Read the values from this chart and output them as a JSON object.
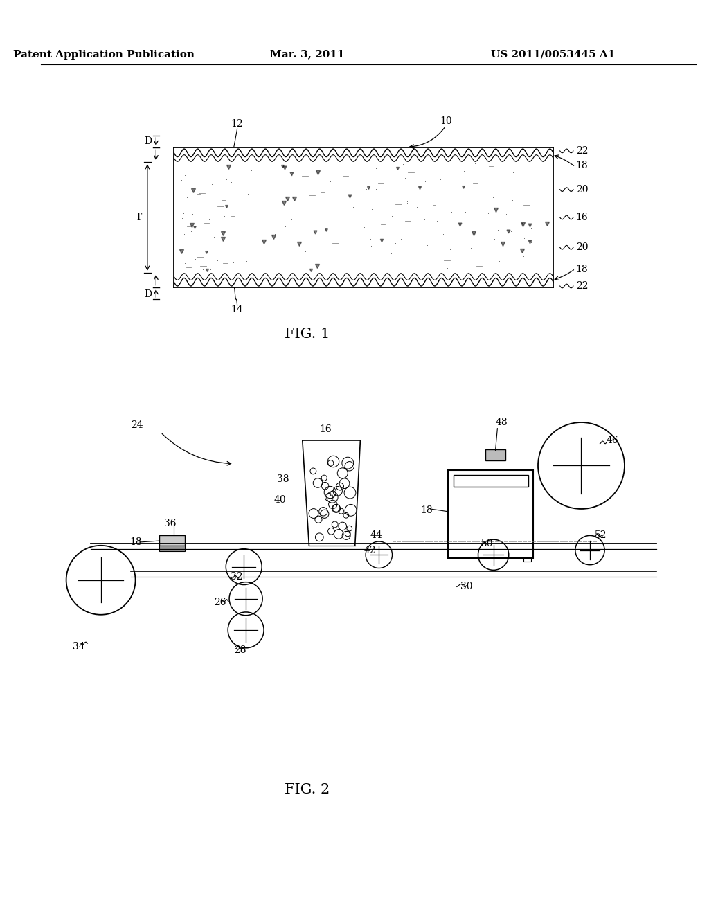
{
  "bg_color": "#ffffff",
  "header_left": "Patent Application Publication",
  "header_center": "Mar. 3, 2011",
  "header_right": "US 2011/0053445 A1",
  "fig1_title": "FIG. 1",
  "fig2_title": "FIG. 2",
  "line_color": "#000000",
  "label_fontsize": 10,
  "header_fontsize": 11,
  "figtitle_fontsize": 15
}
